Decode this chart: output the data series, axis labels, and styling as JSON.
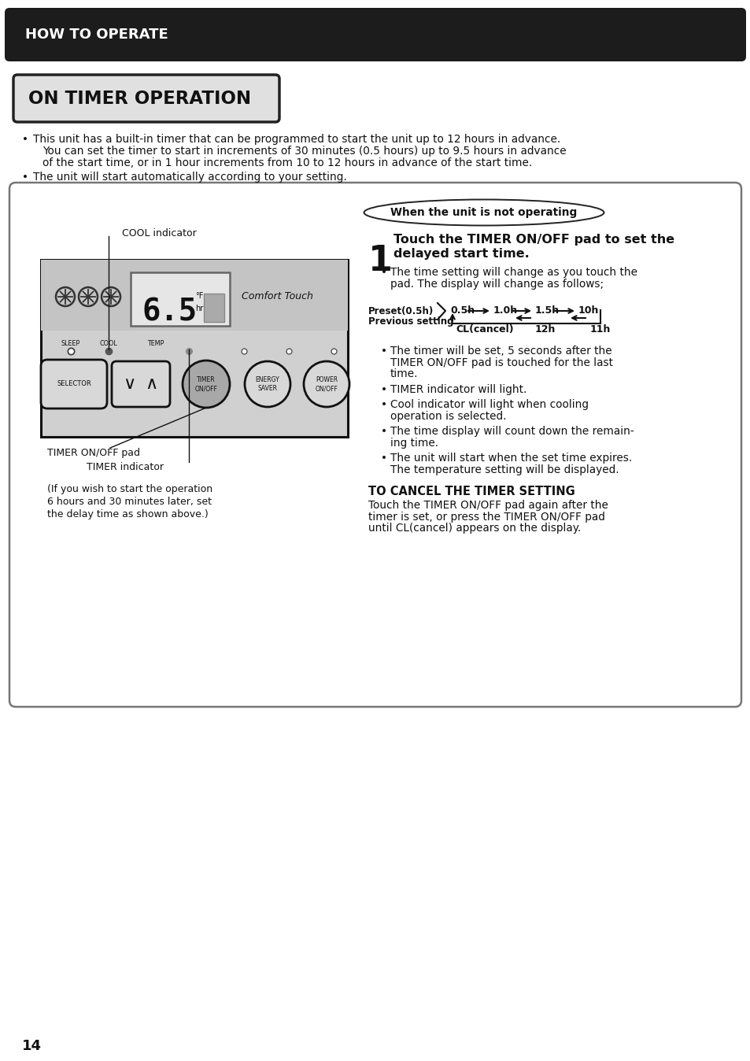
{
  "bg_color": "#ffffff",
  "header_bg": "#1c1c1c",
  "header_text": "HOW TO OPERATE",
  "header_text_color": "#ffffff",
  "title_text": "ON TIMER OPERATION",
  "title_bg": "#e0e0e0",
  "bullet1_lines": [
    "This unit has a built-in timer that can be programmed to start the unit up to 12 hours in advance.",
    "You can set the timer to start in increments of 30 minutes (0.5 hours) up to 9.5 hours in advance",
    "of the start time, or in 1 hour increments from 10 to 12 hours in advance of the start time."
  ],
  "bullet2": "The unit will start automatically according to your setting.",
  "when_label": "When the unit is not operating",
  "step1_line1": "Touch the TIMER ON/OFF pad to set the",
  "step1_line2": "delayed start time.",
  "step1_sub1a": "The time setting will change as you touch the",
  "step1_sub1b": "pad. The display will change as follows;",
  "preset_label": "Preset(0.5h)",
  "prev_label": "Previous setting",
  "flow_top": [
    "0.5h",
    "1.0h",
    "1.5h",
    "10h"
  ],
  "flow_bot": [
    "CL(cancel)",
    "12h",
    "11h"
  ],
  "bullets_main_lines": [
    [
      "The timer will be set, 5 seconds after the",
      "TIMER ON/OFF pad is touched for the last",
      "time."
    ],
    [
      "TIMER indicator will light."
    ],
    [
      "Cool indicator will light when cooling",
      "operation is selected."
    ],
    [
      "The time display will count down the remain-",
      "ing time."
    ],
    [
      "The unit will start when the set time expires.",
      "The temperature setting will be displayed."
    ]
  ],
  "cancel_head": "TO CANCEL THE TIMER SETTING",
  "cancel_lines": [
    "Touch the TIMER ON/OFF pad again after the",
    "timer is set, or press the TIMER ON/OFF pad",
    "until CL(cancel) appears on the display."
  ],
  "left_note": [
    "(If you wish to start the operation",
    "6 hours and 30 minutes later, set",
    "the delay time as shown above.)"
  ],
  "page_num": "14"
}
